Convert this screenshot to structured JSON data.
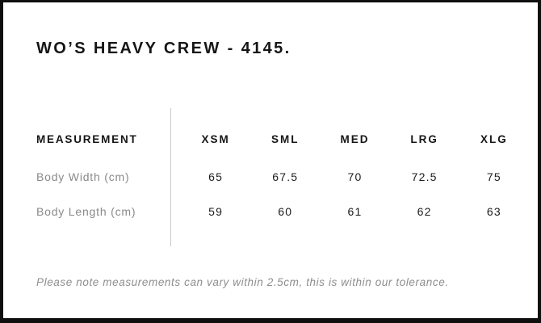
{
  "title": "WO’S HEAVY CREW - 4145.",
  "size_chart": {
    "measurement_header": "MEASUREMENT",
    "size_headers": [
      "XSM",
      "SML",
      "MED",
      "LRG",
      "XLG"
    ],
    "rows": [
      {
        "label": "Body Width (cm)",
        "values": [
          "65",
          "67.5",
          "70",
          "72.5",
          "75"
        ]
      },
      {
        "label": "Body Length (cm)",
        "values": [
          "59",
          "60",
          "61",
          "62",
          "63"
        ]
      }
    ]
  },
  "footer_note": "Please note measurements can vary within 2.5cm, this is within our tolerance.",
  "colors": {
    "background": "#ffffff",
    "frame_border": "#0f0f0f",
    "text_primary": "#161616",
    "text_secondary": "#8a8a8a",
    "divider": "#c9c9c9"
  },
  "chart_data": {
    "type": "table",
    "title": "WO’S HEAVY CREW - 4145.",
    "columns": [
      "MEASUREMENT",
      "XSM",
      "SML",
      "MED",
      "LRG",
      "XLG"
    ],
    "rows": [
      [
        "Body Width (cm)",
        65,
        67.5,
        70,
        72.5,
        75
      ],
      [
        "Body Length (cm)",
        59,
        60,
        61,
        62,
        63
      ]
    ],
    "note": "Please note measurements can vary within 2.5cm, this is within our tolerance."
  }
}
